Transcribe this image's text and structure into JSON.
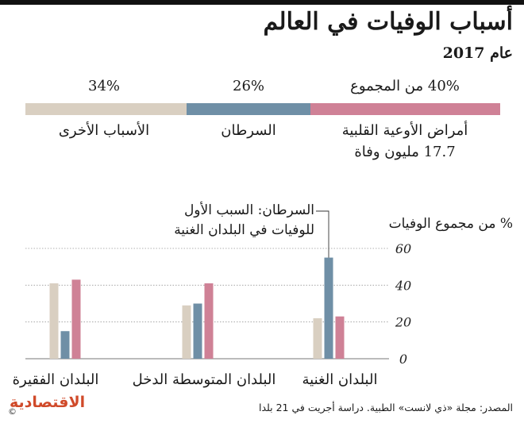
{
  "title": "أسباب الوفيات في العالم",
  "subtitle": "عام 2017",
  "colors": {
    "other": "#d9cfc1",
    "cancer": "#6f8fa6",
    "cardio": "#cf8196",
    "axis": "#555555"
  },
  "stacked_bar": {
    "segments": [
      {
        "key": "cardio",
        "pct_label": "40% من المجموع",
        "name": "أمراض الأوعية القلبية",
        "sub": "17.7 مليون وفاة",
        "value": 40
      },
      {
        "key": "cancer",
        "pct_label": "26%",
        "name": "السرطان",
        "value": 26
      },
      {
        "key": "other",
        "pct_label": "34%",
        "name": "الأسباب الأخرى",
        "value": 34
      }
    ]
  },
  "annotation": {
    "line1": "السرطان: السبب الأول",
    "line2": "للوفيات في البلدان الغنية"
  },
  "chart_data": {
    "type": "bar",
    "ylabel": "% من مجموع الوفيات",
    "ylim": [
      0,
      60
    ],
    "yticks": [
      "0",
      "20",
      "40",
      "60"
    ],
    "grid": true,
    "categories": [
      "البلدان الغنية",
      "البلدان المتوسطة الدخل",
      "البلدان الفقيرة"
    ],
    "series": [
      {
        "key": "other",
        "values": [
          22,
          29,
          41
        ]
      },
      {
        "key": "cancer",
        "values": [
          55,
          30,
          15
        ]
      },
      {
        "key": "cardio",
        "values": [
          23,
          41,
          43
        ]
      }
    ]
  },
  "source": "المصدر: مجلة «ذي لانست» الطبية. دراسة أجريت في 21 بلدا",
  "logo": "الاقتصادية",
  "logo_mark": "©"
}
